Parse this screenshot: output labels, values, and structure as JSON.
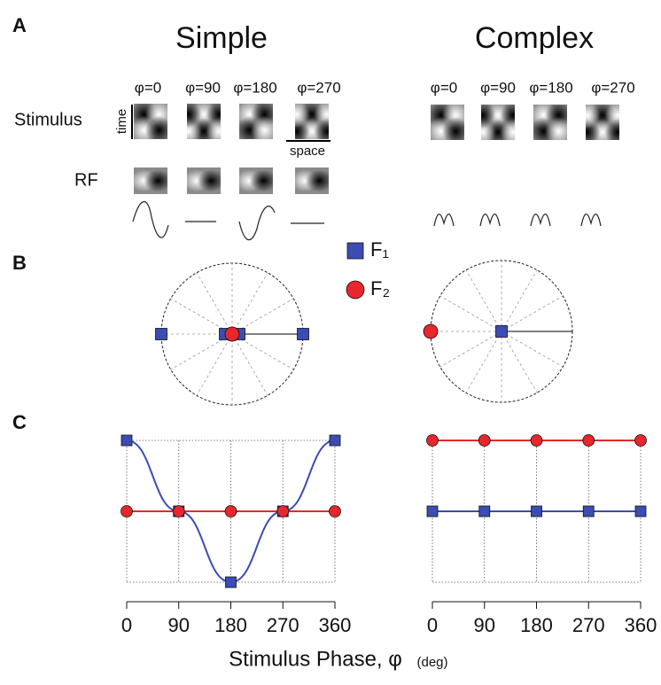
{
  "panel_labels": [
    "A",
    "B",
    "C"
  ],
  "panel_a": {
    "simple": {
      "title": "Simple",
      "phases": [
        "φ=0",
        "φ=90",
        "φ=180",
        "φ=270"
      ]
    },
    "complex": {
      "title": "Complex",
      "phases": [
        "φ=0",
        "φ=90",
        "φ=180",
        "φ=270"
      ]
    },
    "stimulus_label": "Stimulus",
    "time_label": "time",
    "space_label": "space",
    "rf_label": "RF"
  },
  "shared_xlabel": {
    "text": "Stimulus Phase, φ",
    "unit": "(deg)"
  },
  "chart_data": [
    {
      "type": "polar",
      "xlim": [
        -1,
        1
      ],
      "ylim": [
        -1,
        1
      ],
      "series": [
        {
          "name": "F₁",
          "color": "#3b4cb3",
          "marker": "square",
          "x": [
            -1,
            -0.1,
            0.1,
            1
          ],
          "values": [
            0,
            0,
            0,
            0
          ]
        },
        {
          "name": "F₂",
          "color": "#e8262b",
          "marker": "circle",
          "x": [
            0
          ],
          "values": [
            0
          ]
        }
      ]
    },
    {
      "type": "polar",
      "xlim": [
        -1,
        1
      ],
      "ylim": [
        -1,
        1
      ],
      "series": [
        {
          "name": "F₁",
          "color": "#3b4cb3",
          "marker": "square",
          "x": [
            0
          ],
          "values": [
            0
          ]
        },
        {
          "name": "F₂",
          "color": "#e8262b",
          "marker": "circle",
          "x": [
            -1
          ],
          "values": [
            0
          ]
        }
      ]
    },
    {
      "type": "line",
      "x": [
        0,
        90,
        180,
        270,
        360
      ],
      "xlim": [
        0,
        360
      ],
      "xticks": [
        0,
        90,
        180,
        270,
        360
      ],
      "ylim": [
        -1,
        1
      ],
      "grid": true,
      "series": [
        {
          "name": "F₁",
          "color": "#3b4cb3",
          "marker": "square",
          "smooth": true,
          "values": [
            1,
            0,
            -1,
            0,
            1
          ]
        },
        {
          "name": "F₂",
          "color": "#e8262b",
          "marker": "circle",
          "smooth": false,
          "values": [
            0,
            0,
            0,
            0,
            0
          ]
        }
      ]
    },
    {
      "type": "line",
      "x": [
        0,
        90,
        180,
        270,
        360
      ],
      "xlim": [
        0,
        360
      ],
      "xticks": [
        0,
        90,
        180,
        270,
        360
      ],
      "ylim": [
        -1,
        1
      ],
      "grid": true,
      "series": [
        {
          "name": "F₁",
          "color": "#3b4cb3",
          "marker": "square",
          "smooth": false,
          "values": [
            0,
            0,
            0,
            0,
            0
          ]
        },
        {
          "name": "F₂",
          "color": "#e8262b",
          "marker": "circle",
          "smooth": false,
          "values": [
            1,
            1,
            1,
            1,
            1
          ]
        }
      ]
    }
  ]
}
